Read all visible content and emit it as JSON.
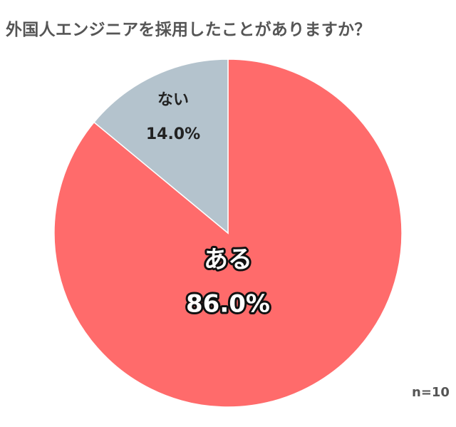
{
  "title": "外国人エンジニアを採用したことがありますか？",
  "note": "n=10",
  "chart_data": {
    "type": "pie",
    "start_angle_deg": 0,
    "direction": "clockwise",
    "slices": [
      {
        "label": "ある",
        "value": 86.0,
        "display": "86.0%",
        "color": "#ff6b6b"
      },
      {
        "label": "ない",
        "value": 14.0,
        "display": "14.0%",
        "color": "#b4c3cd"
      }
    ]
  }
}
